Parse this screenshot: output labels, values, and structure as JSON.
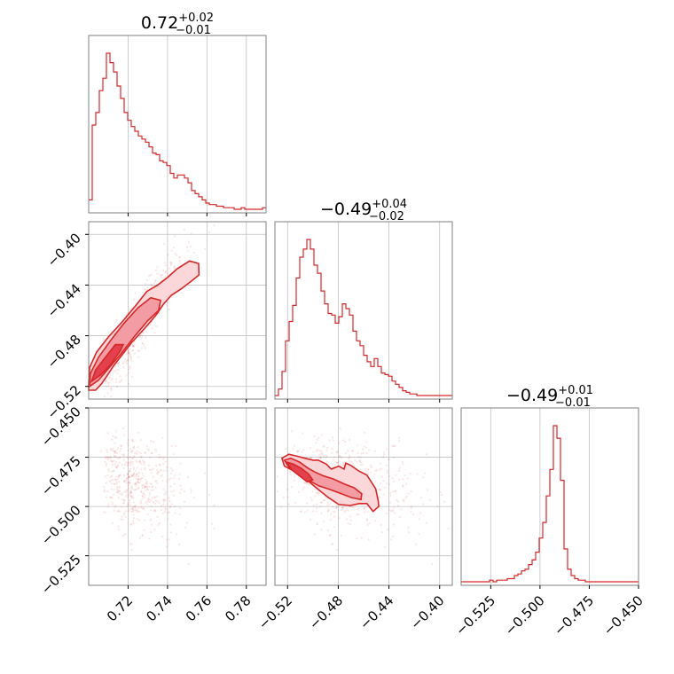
{
  "chart_data": {
    "type": "corner",
    "colors": {
      "series": "#d62728",
      "fill_light": "#fcd7da",
      "fill_mid": "#f39ca3",
      "fill_dark": "#e2414d",
      "grid": "#c0c0c0",
      "frame": "#808080"
    },
    "parameters": [
      {
        "title_value": "0.72",
        "title_plus": "+0.02",
        "title_minus": "−0.01",
        "range": [
          0.7,
          0.79
        ]
      },
      {
        "title_value": "−0.49",
        "title_plus": "+0.04",
        "title_minus": "−0.02",
        "range": [
          -0.53,
          -0.39
        ]
      },
      {
        "title_value": "−0.49",
        "title_plus": "+0.01",
        "title_minus": "−0.01",
        "range": [
          -0.54,
          -0.45
        ]
      }
    ],
    "ticks": {
      "x0": {
        "values": [
          0.72,
          0.74,
          0.76,
          0.78
        ],
        "labels": [
          "0.72",
          "0.74",
          "0.76",
          "0.78"
        ]
      },
      "x1": {
        "values": [
          -0.52,
          -0.48,
          -0.44,
          -0.4
        ],
        "labels": [
          "−0.52",
          "−0.48",
          "−0.44",
          "−0.40"
        ]
      },
      "x2": {
        "values": [
          -0.525,
          -0.5,
          -0.475,
          -0.45
        ],
        "labels": [
          "−0.525",
          "−0.500",
          "−0.475",
          "−0.450"
        ]
      },
      "y1": {
        "values": [
          -0.4,
          -0.44,
          -0.48,
          -0.52
        ],
        "labels": [
          "−0.40",
          "−0.44",
          "−0.48",
          "−0.52"
        ]
      },
      "y2": {
        "values": [
          -0.45,
          -0.475,
          -0.5,
          -0.525
        ],
        "labels": [
          "−0.450",
          "−0.475",
          "−0.500",
          "−0.525"
        ]
      }
    },
    "hist0": {
      "x": [
        0.7,
        0.7018,
        0.7036,
        0.7054,
        0.7072,
        0.709,
        0.7108,
        0.7126,
        0.7144,
        0.7162,
        0.718,
        0.7198,
        0.7216,
        0.7234,
        0.7252,
        0.727,
        0.7288,
        0.7306,
        0.7324,
        0.7342,
        0.736,
        0.7378,
        0.7396,
        0.7414,
        0.7432,
        0.745,
        0.7468,
        0.7486,
        0.7504,
        0.7522,
        0.754,
        0.7558,
        0.7576,
        0.7594,
        0.7612,
        0.763,
        0.7648,
        0.7666,
        0.7684,
        0.7702,
        0.772,
        0.7738,
        0.7756,
        0.7774,
        0.7792,
        0.781,
        0.7828,
        0.7846,
        0.7864,
        0.7882
      ],
      "counts": [
        6,
        54,
        62,
        76,
        84,
        100,
        94,
        88,
        79,
        71,
        62,
        57,
        53,
        50,
        47,
        45,
        43,
        40,
        36,
        35,
        31,
        30,
        28,
        23,
        20,
        22,
        22,
        20,
        17,
        12,
        10,
        8,
        6,
        4,
        3,
        3,
        2,
        2,
        1,
        1,
        1,
        0,
        0,
        1,
        0,
        0,
        0,
        0,
        0,
        1
      ]
    },
    "hist1": {
      "x": [
        -0.53,
        -0.5272,
        -0.5244,
        -0.5216,
        -0.5188,
        -0.516,
        -0.5132,
        -0.5104,
        -0.5076,
        -0.5048,
        -0.502,
        -0.4992,
        -0.4964,
        -0.4936,
        -0.4908,
        -0.488,
        -0.4852,
        -0.4824,
        -0.4796,
        -0.4768,
        -0.474,
        -0.4712,
        -0.4684,
        -0.4656,
        -0.4628,
        -0.46,
        -0.4572,
        -0.4544,
        -0.4516,
        -0.4488,
        -0.446,
        -0.4432,
        -0.4404,
        -0.4376,
        -0.4348,
        -0.432,
        -0.4292,
        -0.4264,
        -0.4236,
        -0.4208,
        -0.418,
        -0.4152,
        -0.4124,
        -0.4096,
        -0.4068,
        -0.404,
        -0.4012,
        -0.3984,
        -0.3956,
        -0.3928
      ],
      "counts": [
        0,
        4,
        15,
        34,
        46,
        56,
        73,
        86,
        91,
        97,
        91,
        81,
        76,
        65,
        57,
        51,
        50,
        45,
        49,
        57,
        54,
        50,
        40,
        34,
        31,
        25,
        21,
        18,
        23,
        18,
        14,
        13,
        12,
        9,
        7,
        5,
        3,
        2,
        1,
        1,
        0,
        0,
        0,
        0,
        0,
        0,
        0,
        0,
        0,
        0
      ]
    },
    "hist2": {
      "x": [
        -0.54,
        -0.5382,
        -0.5364,
        -0.5346,
        -0.5328,
        -0.531,
        -0.5292,
        -0.5274,
        -0.5256,
        -0.5238,
        -0.522,
        -0.5202,
        -0.5184,
        -0.5166,
        -0.5148,
        -0.513,
        -0.5112,
        -0.5094,
        -0.5076,
        -0.5058,
        -0.504,
        -0.5022,
        -0.5004,
        -0.4986,
        -0.4968,
        -0.495,
        -0.4932,
        -0.4914,
        -0.4896,
        -0.4878,
        -0.486,
        -0.4842,
        -0.4824,
        -0.4806,
        -0.4788,
        -0.477,
        -0.4752,
        -0.4734,
        -0.4716,
        -0.4698,
        -0.468,
        -0.4662,
        -0.4644,
        -0.4626,
        -0.4608,
        -0.459,
        -0.4572,
        -0.4554,
        -0.4536,
        -0.4518
      ],
      "counts": [
        0,
        0,
        0,
        0,
        0,
        0,
        0,
        0,
        1,
        0,
        1,
        1,
        1,
        2,
        2,
        4,
        5,
        7,
        8,
        11,
        14,
        19,
        28,
        38,
        55,
        72,
        100,
        92,
        65,
        21,
        8,
        4,
        2,
        1,
        1,
        0,
        0,
        0,
        0,
        0,
        0,
        0,
        0,
        0,
        0,
        0,
        0,
        0,
        0,
        0
      ]
    },
    "contours_10": [
      [
        [
          0.7,
          -0.523
        ],
        [
          0.7035,
          -0.523
        ],
        [
          0.7065,
          -0.518
        ],
        [
          0.71,
          -0.51
        ],
        [
          0.713,
          -0.503
        ],
        [
          0.717,
          -0.495
        ],
        [
          0.722,
          -0.485
        ],
        [
          0.728,
          -0.475
        ],
        [
          0.734,
          -0.464
        ],
        [
          0.738,
          -0.455
        ],
        [
          0.742,
          -0.448
        ],
        [
          0.747,
          -0.443
        ],
        [
          0.752,
          -0.437
        ],
        [
          0.756,
          -0.432
        ],
        [
          0.7558,
          -0.423
        ],
        [
          0.7512,
          -0.421
        ],
        [
          0.745,
          -0.427
        ],
        [
          0.74,
          -0.434
        ],
        [
          0.735,
          -0.44
        ],
        [
          0.7295,
          -0.445
        ],
        [
          0.724,
          -0.456
        ],
        [
          0.717,
          -0.469
        ],
        [
          0.71,
          -0.481
        ],
        [
          0.704,
          -0.493
        ],
        [
          0.7005,
          -0.505
        ],
        [
          0.7,
          -0.517
        ]
      ],
      [
        [
          0.7005,
          -0.52
        ],
        [
          0.705,
          -0.515
        ],
        [
          0.71,
          -0.506
        ],
        [
          0.716,
          -0.495
        ],
        [
          0.723,
          -0.481
        ],
        [
          0.73,
          -0.468
        ],
        [
          0.7355,
          -0.46
        ],
        [
          0.7365,
          -0.452
        ],
        [
          0.7315,
          -0.45
        ],
        [
          0.725,
          -0.458
        ],
        [
          0.718,
          -0.47
        ],
        [
          0.711,
          -0.484
        ],
        [
          0.705,
          -0.497
        ],
        [
          0.7008,
          -0.51
        ]
      ],
      [
        [
          0.7015,
          -0.516
        ],
        [
          0.706,
          -0.511
        ],
        [
          0.711,
          -0.503
        ],
        [
          0.716,
          -0.492
        ],
        [
          0.7175,
          -0.487
        ],
        [
          0.7135,
          -0.487
        ],
        [
          0.708,
          -0.498
        ],
        [
          0.7035,
          -0.507
        ]
      ]
    ],
    "contours_20": [
      [
        [
          -0.5245,
          -0.476
        ],
        [
          -0.5215,
          -0.4735
        ],
        [
          -0.512,
          -0.4745
        ],
        [
          -0.505,
          -0.477
        ],
        [
          -0.497,
          -0.479
        ],
        [
          -0.49,
          -0.481
        ],
        [
          -0.482,
          -0.481
        ],
        [
          -0.477,
          -0.479
        ],
        [
          -0.468,
          -0.4845
        ],
        [
          -0.461,
          -0.4805
        ],
        [
          -0.454,
          -0.484
        ],
        [
          -0.448,
          -0.489
        ],
        [
          -0.445,
          -0.492
        ],
        [
          -0.443,
          -0.496
        ],
        [
          -0.4405,
          -0.501
        ],
        [
          -0.4445,
          -0.507
        ],
        [
          -0.4415,
          -0.5115
        ],
        [
          -0.4455,
          -0.5115
        ],
        [
          -0.4505,
          -0.5065
        ],
        [
          -0.457,
          -0.5015
        ],
        [
          -0.4645,
          -0.5
        ],
        [
          -0.4755,
          -0.501
        ],
        [
          -0.4875,
          -0.497
        ],
        [
          -0.4985,
          -0.4935
        ],
        [
          -0.5065,
          -0.489
        ],
        [
          -0.5125,
          -0.486
        ],
        [
          -0.52,
          -0.4815
        ],
        [
          -0.5245,
          -0.4785
        ]
      ],
      [
        [
          -0.5225,
          -0.4765
        ],
        [
          -0.516,
          -0.4765
        ],
        [
          -0.507,
          -0.48
        ],
        [
          -0.494,
          -0.483
        ],
        [
          -0.4815,
          -0.4855
        ],
        [
          -0.4705,
          -0.4885
        ],
        [
          -0.461,
          -0.4935
        ],
        [
          -0.458,
          -0.4985
        ],
        [
          -0.4675,
          -0.4985
        ],
        [
          -0.4795,
          -0.4965
        ],
        [
          -0.4925,
          -0.4925
        ],
        [
          -0.5035,
          -0.4885
        ],
        [
          -0.5125,
          -0.4845
        ],
        [
          -0.5195,
          -0.4805
        ]
      ],
      [
        [
          -0.5205,
          -0.477
        ],
        [
          -0.514,
          -0.4785
        ],
        [
          -0.506,
          -0.482
        ],
        [
          -0.4995,
          -0.4875
        ],
        [
          -0.505,
          -0.4875
        ],
        [
          -0.5115,
          -0.4835
        ],
        [
          -0.5175,
          -0.4805
        ]
      ]
    ],
    "contours_21": [
      [
        [
          -0.5245,
          -0.4755
        ],
        [
          -0.519,
          -0.4735
        ],
        [
          -0.5125,
          -0.4745
        ],
        [
          -0.5065,
          -0.4755
        ],
        [
          -0.4998,
          -0.4765
        ],
        [
          -0.4958,
          -0.4765
        ],
        [
          -0.4895,
          -0.4785
        ],
        [
          -0.4855,
          -0.481
        ],
        [
          -0.4795,
          -0.4795
        ],
        [
          -0.4755,
          -0.481
        ],
        [
          -0.474,
          -0.478
        ],
        [
          -0.4705,
          -0.479
        ],
        [
          -0.466,
          -0.481
        ],
        [
          -0.4638,
          -0.482
        ],
        [
          -0.4575,
          -0.484
        ],
        [
          -0.4545,
          -0.487
        ],
        [
          -0.4505,
          -0.491
        ],
        [
          -0.4485,
          -0.497
        ],
        [
          -0.448,
          -0.5
        ],
        [
          -0.4525,
          -0.5025
        ],
        [
          -0.4575,
          -0.4985
        ],
        [
          -0.4635,
          -0.4985
        ],
        [
          -0.4705,
          -0.4995
        ],
        [
          -0.4795,
          -0.499
        ],
        [
          -0.4878,
          -0.4955
        ],
        [
          -0.4955,
          -0.4915
        ],
        [
          -0.503,
          -0.4875
        ],
        [
          -0.5098,
          -0.4845
        ],
        [
          -0.5165,
          -0.4815
        ],
        [
          -0.5225,
          -0.4795
        ]
      ],
      [
        [
          -0.5225,
          -0.4765
        ],
        [
          -0.5175,
          -0.4755
        ],
        [
          -0.5105,
          -0.4775
        ],
        [
          -0.504,
          -0.4805
        ],
        [
          -0.4985,
          -0.4825
        ],
        [
          -0.4915,
          -0.4845
        ],
        [
          -0.484,
          -0.486
        ],
        [
          -0.4755,
          -0.4885
        ],
        [
          -0.4675,
          -0.4905
        ],
        [
          -0.4615,
          -0.4935
        ],
        [
          -0.462,
          -0.4965
        ],
        [
          -0.4695,
          -0.4955
        ],
        [
          -0.4775,
          -0.4935
        ],
        [
          -0.486,
          -0.4915
        ],
        [
          -0.4955,
          -0.4895
        ],
        [
          -0.504,
          -0.4865
        ],
        [
          -0.5115,
          -0.4835
        ],
        [
          -0.5185,
          -0.4805
        ]
      ],
      [
        [
          -0.5205,
          -0.4775
        ],
        [
          -0.5155,
          -0.4785
        ],
        [
          -0.5095,
          -0.4805
        ],
        [
          -0.5035,
          -0.4835
        ],
        [
          -0.5002,
          -0.4865
        ],
        [
          -0.5045,
          -0.4875
        ],
        [
          -0.5105,
          -0.4845
        ],
        [
          -0.5165,
          -0.4815
        ]
      ]
    ]
  }
}
